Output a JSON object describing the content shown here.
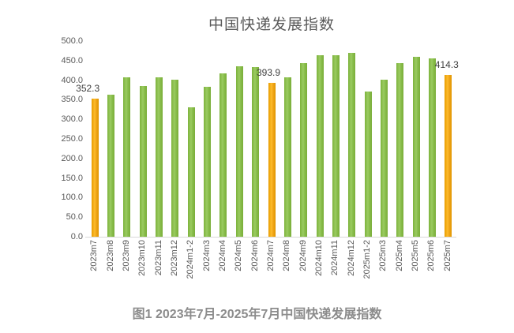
{
  "chart": {
    "caption": "图1 2023年7月-2025年7月中国快递发展指数",
    "colors": {
      "bar_green": "#8cc04f",
      "bar_orange": "#f2a71b",
      "title_text": "#595959",
      "axis_text": "#595959",
      "caption_text": "#8c8c8c",
      "data_label_text": "#3f3f3f",
      "baseline": "#d9d9d9",
      "background": "#ffffff"
    },
    "y_axis_tick_labels": [
      "500.0",
      "450.0",
      "400.0",
      "350.0",
      "300.0",
      "250.0",
      "200.0",
      "150.0",
      "100.0",
      "50.0",
      "0.0"
    ]
  },
  "chart_data": {
    "type": "bar",
    "title": "中国快递发展指数",
    "categories": [
      "2023m7",
      "2023m8",
      "2023m9",
      "2023m10",
      "2023m11",
      "2023m12",
      "2024m1-2",
      "2024m3",
      "2024m4",
      "2024m5",
      "2024m6",
      "2024m7",
      "2024m8",
      "2024m9",
      "2024m10",
      "2024m11",
      "2024m12",
      "2025m1-2",
      "2025m3",
      "2025m4",
      "2025m5",
      "2025m6",
      "2025m7"
    ],
    "values": [
      352.3,
      362,
      407,
      386,
      408,
      402,
      331,
      384,
      417,
      436,
      433,
      393.9,
      408,
      444,
      464,
      463,
      470,
      370,
      401,
      444,
      460,
      455,
      414.3
    ],
    "highlight_indices": [
      0,
      11,
      22
    ],
    "data_labels": [
      {
        "index": 0,
        "text": "352.3"
      },
      {
        "index": 11,
        "text": "393.9"
      },
      {
        "index": 22,
        "text": "414.3"
      }
    ],
    "xlabel": "",
    "ylabel": "",
    "ylim": [
      0,
      500
    ],
    "y_step": 50,
    "grid": false,
    "legend": false
  }
}
